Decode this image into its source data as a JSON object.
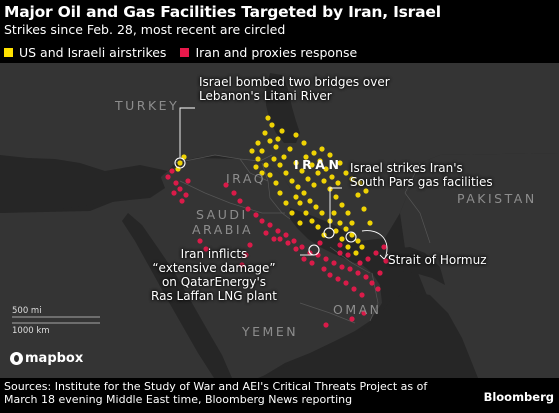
{
  "title": "Major Oil and Gas Facilities Targeted by Iran, Israel",
  "subtitle": "Strikes since Feb. 28, most recent are circled",
  "legend": [
    {
      "label": "US and Israeli airstrikes",
      "color": "#ffe100"
    },
    {
      "label": "Iran and proxies response",
      "color": "#e8194b"
    }
  ],
  "colors": {
    "strike_us_israel": "#ffe100",
    "strike_iran_proxies": "#e8194b",
    "land": "#333333",
    "water": "#262626"
  },
  "countries": {
    "turkey": "TURKEY",
    "iran": "IRAN",
    "iraq": "IRAQ",
    "saudi_line1": "SAUDI",
    "saudi_line2": "ARABIA",
    "pakistan": "PAKISTAN",
    "oman": "OMAN",
    "yemen": "YEMEN"
  },
  "annotations": {
    "lebanon_line1": "Israel bombed two bridges over",
    "lebanon_line2": "Lebanon's Litani River",
    "southpars_line1": "Israel strikes Iran's",
    "southpars_line2": "South Pars gas facilities",
    "hormuz": "Strait of Hormuz",
    "raslaffan_line1": "Iran inflicts",
    "raslaffan_line2": "“extensive damage”",
    "raslaffan_line3": "on QatarEnergy's",
    "raslaffan_line4": "Ras Laffan LNG plant"
  },
  "scale": {
    "miles": "500 mi",
    "km": "1000 km"
  },
  "attribution": "mapbox",
  "source": {
    "line1": "Sources: Institute for the Study of War and AEI's Critical Threats Project as of",
    "line2": "March 18 evening Middle East time, Bloomberg News reporting"
  },
  "brand": "Bloomberg"
}
